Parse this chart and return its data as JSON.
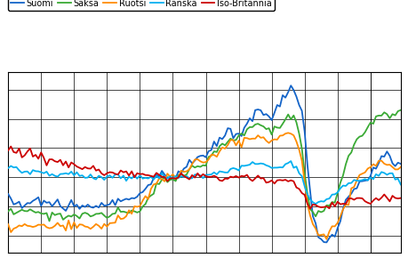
{
  "legend_labels": [
    "Suomi",
    "Saksa",
    "Ruotsi",
    "Ranska",
    "Iso-Britannia"
  ],
  "colors": [
    "#1464c8",
    "#3aaa35",
    "#ff8c00",
    "#00b0f0",
    "#cc0000"
  ],
  "ylim": [
    74,
    136
  ],
  "xlim": [
    0,
    143
  ],
  "background_color": "#ffffff",
  "grid_color": "#000000",
  "linewidth": 1.3,
  "suomi": [
    93,
    92,
    92,
    91,
    91,
    90,
    90,
    91,
    91,
    92,
    92,
    92,
    91,
    91,
    91,
    91,
    91,
    91,
    91,
    91,
    91,
    90,
    90,
    90,
    89,
    89,
    89,
    89,
    90,
    90,
    90,
    90,
    90,
    90,
    90,
    90,
    90,
    91,
    91,
    91,
    92,
    92,
    93,
    93,
    93,
    93,
    93,
    93,
    94,
    95,
    96,
    97,
    98,
    99,
    100,
    100,
    100,
    100,
    100,
    100,
    100,
    100,
    101,
    102,
    103,
    104,
    105,
    106,
    106,
    107,
    107,
    107,
    107,
    108,
    109,
    110,
    112,
    113,
    114,
    115,
    115,
    115,
    115,
    115,
    115,
    116,
    117,
    118,
    120,
    121,
    122,
    123,
    123,
    122,
    121,
    120,
    120,
    122,
    124,
    126,
    128,
    129,
    130,
    131,
    130,
    128,
    125,
    122,
    115,
    105,
    95,
    87,
    82,
    80,
    79,
    78,
    78,
    79,
    80,
    81,
    83,
    86,
    88,
    90,
    92,
    94,
    95,
    96,
    97,
    98,
    99,
    100,
    101,
    103,
    104,
    105,
    106,
    107,
    107,
    106,
    105,
    105,
    105,
    105
  ],
  "saksa": [
    88,
    88,
    88,
    88,
    88,
    88,
    88,
    88,
    88,
    88,
    88,
    88,
    88,
    87,
    87,
    87,
    87,
    87,
    87,
    87,
    87,
    87,
    87,
    87,
    87,
    87,
    87,
    87,
    87,
    87,
    87,
    87,
    87,
    87,
    87,
    87,
    87,
    87,
    87,
    87,
    88,
    88,
    88,
    88,
    88,
    88,
    88,
    88,
    89,
    90,
    91,
    92,
    93,
    95,
    97,
    98,
    99,
    99,
    99,
    99,
    100,
    100,
    100,
    101,
    101,
    102,
    103,
    103,
    103,
    104,
    104,
    104,
    105,
    106,
    107,
    108,
    109,
    110,
    111,
    112,
    112,
    113,
    113,
    113,
    114,
    115,
    115,
    116,
    117,
    117,
    118,
    118,
    118,
    118,
    117,
    116,
    116,
    117,
    118,
    118,
    119,
    120,
    121,
    121,
    120,
    118,
    115,
    110,
    102,
    94,
    89,
    87,
    87,
    88,
    88,
    89,
    89,
    90,
    91,
    92,
    95,
    98,
    101,
    104,
    107,
    109,
    111,
    113,
    114,
    115,
    116,
    117,
    118,
    119,
    120,
    121,
    122,
    122,
    121,
    120,
    120,
    121,
    122,
    123
  ],
  "ruotsi": [
    83,
    83,
    83,
    83,
    83,
    83,
    83,
    83,
    83,
    83,
    83,
    83,
    83,
    83,
    83,
    83,
    83,
    83,
    83,
    83,
    83,
    83,
    83,
    83,
    83,
    83,
    83,
    83,
    83,
    83,
    83,
    83,
    83,
    83,
    83,
    83,
    84,
    84,
    85,
    85,
    86,
    86,
    87,
    87,
    88,
    88,
    89,
    89,
    90,
    91,
    92,
    94,
    95,
    97,
    98,
    99,
    99,
    99,
    100,
    100,
    100,
    100,
    101,
    102,
    102,
    103,
    104,
    104,
    105,
    105,
    105,
    105,
    105,
    106,
    107,
    108,
    108,
    109,
    110,
    110,
    111,
    111,
    112,
    112,
    112,
    112,
    113,
    113,
    113,
    114,
    114,
    114,
    114,
    113,
    113,
    112,
    112,
    113,
    113,
    114,
    114,
    115,
    115,
    115,
    114,
    112,
    109,
    105,
    99,
    92,
    87,
    84,
    82,
    81,
    80,
    80,
    80,
    81,
    82,
    83,
    85,
    87,
    89,
    91,
    93,
    95,
    97,
    99,
    100,
    101,
    102,
    103,
    103,
    104,
    104,
    105,
    105,
    105,
    105,
    104,
    103,
    103,
    103,
    103
  ],
  "ranska": [
    103,
    103,
    103,
    102,
    102,
    102,
    102,
    102,
    102,
    102,
    102,
    102,
    102,
    102,
    102,
    101,
    101,
    101,
    101,
    101,
    101,
    101,
    101,
    101,
    101,
    101,
    101,
    101,
    100,
    100,
    100,
    100,
    100,
    100,
    100,
    100,
    100,
    100,
    100,
    100,
    100,
    100,
    100,
    100,
    100,
    100,
    100,
    100,
    100,
    100,
    100,
    100,
    100,
    100,
    100,
    100,
    100,
    100,
    100,
    100,
    100,
    100,
    100,
    100,
    100,
    100,
    100,
    100,
    100,
    100,
    100,
    100,
    100,
    101,
    101,
    101,
    101,
    102,
    102,
    102,
    102,
    103,
    103,
    103,
    103,
    104,
    104,
    104,
    104,
    105,
    105,
    105,
    105,
    105,
    105,
    104,
    104,
    104,
    104,
    104,
    104,
    105,
    105,
    105,
    104,
    103,
    101,
    100,
    97,
    94,
    92,
    91,
    91,
    91,
    91,
    91,
    92,
    93,
    94,
    94,
    95,
    96,
    97,
    97,
    98,
    98,
    99,
    99,
    99,
    99,
    100,
    100,
    100,
    100,
    100,
    100,
    101,
    101,
    101,
    101,
    101,
    100,
    99,
    98
  ],
  "iso": [
    110,
    110,
    109,
    109,
    109,
    108,
    108,
    108,
    108,
    107,
    107,
    107,
    107,
    107,
    106,
    106,
    106,
    106,
    105,
    105,
    105,
    105,
    104,
    104,
    104,
    104,
    103,
    103,
    103,
    103,
    102,
    102,
    102,
    102,
    101,
    101,
    101,
    101,
    101,
    101,
    101,
    101,
    101,
    101,
    101,
    101,
    101,
    101,
    101,
    101,
    101,
    100,
    100,
    100,
    100,
    100,
    100,
    100,
    100,
    100,
    100,
    100,
    100,
    100,
    100,
    100,
    100,
    100,
    100,
    100,
    100,
    100,
    100,
    100,
    100,
    100,
    100,
    100,
    100,
    100,
    100,
    100,
    100,
    100,
    100,
    100,
    100,
    100,
    100,
    100,
    100,
    100,
    100,
    100,
    99,
    99,
    99,
    99,
    99,
    99,
    99,
    99,
    99,
    98,
    98,
    97,
    96,
    95,
    93,
    91,
    90,
    90,
    90,
    90,
    90,
    90,
    90,
    90,
    90,
    90,
    90,
    91,
    91,
    91,
    92,
    92,
    92,
    92,
    92,
    92,
    92,
    92,
    92,
    93,
    93,
    93,
    93,
    93,
    93,
    93,
    93,
    93,
    93,
    93
  ]
}
